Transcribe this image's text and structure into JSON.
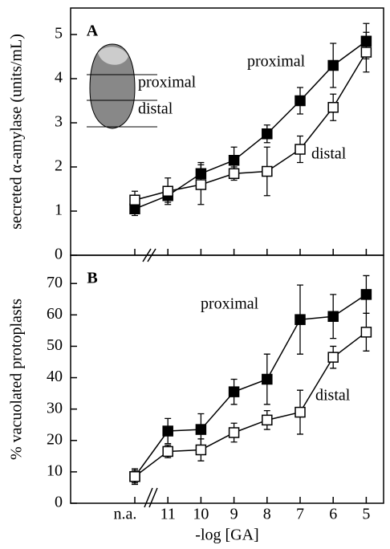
{
  "chart_data": [
    {
      "type": "line",
      "panel_label": "A",
      "ylabel": "secreted α-amylase (units/mL)",
      "ylim": [
        0,
        5.6
      ],
      "yticks": [
        0,
        1,
        2,
        3,
        4,
        5
      ],
      "series": [
        {
          "name": "proximal",
          "color": "#000000",
          "marker_fill": "#000000",
          "values": [
            1.05,
            1.35,
            1.85,
            2.15,
            2.75,
            3.5,
            4.3,
            4.85
          ],
          "errors": [
            0.15,
            0.15,
            0.25,
            0.3,
            0.2,
            0.3,
            0.5,
            0.4
          ]
        },
        {
          "name": "distal",
          "color": "#000000",
          "marker_fill": "#ffffff",
          "values": [
            1.25,
            1.45,
            1.6,
            1.85,
            1.9,
            2.4,
            3.35,
            4.6
          ],
          "errors": [
            0.2,
            0.3,
            0.45,
            0.15,
            0.55,
            0.3,
            0.3,
            0.45
          ]
        }
      ],
      "annotations": [
        "proximal",
        "distal",
        "proximal",
        "distal"
      ]
    },
    {
      "type": "line",
      "panel_label": "B",
      "ylabel": "% vacuolated protoplasts",
      "xlabel": "-log [GA]",
      "categories": [
        "n.a.",
        "11",
        "10",
        "9",
        "8",
        "7",
        "6",
        "5"
      ],
      "ylim": [
        0,
        79
      ],
      "yticks": [
        0,
        10,
        20,
        30,
        40,
        50,
        60,
        70
      ],
      "series": [
        {
          "name": "proximal",
          "color": "#000000",
          "marker_fill": "#000000",
          "values": [
            8.5,
            23,
            23.5,
            35.5,
            39.5,
            58.5,
            59.5,
            66.5
          ],
          "errors": [
            2.5,
            4,
            5,
            4,
            8,
            11,
            7,
            6
          ]
        },
        {
          "name": "distal",
          "color": "#000000",
          "marker_fill": "#ffffff",
          "values": [
            8.5,
            16.5,
            17,
            22.5,
            26.5,
            29,
            46.5,
            54.5
          ],
          "errors": [
            2,
            2,
            3.5,
            3,
            3,
            7,
            3.5,
            6
          ]
        }
      ],
      "annotations": [
        "proximal",
        "distal"
      ]
    }
  ]
}
